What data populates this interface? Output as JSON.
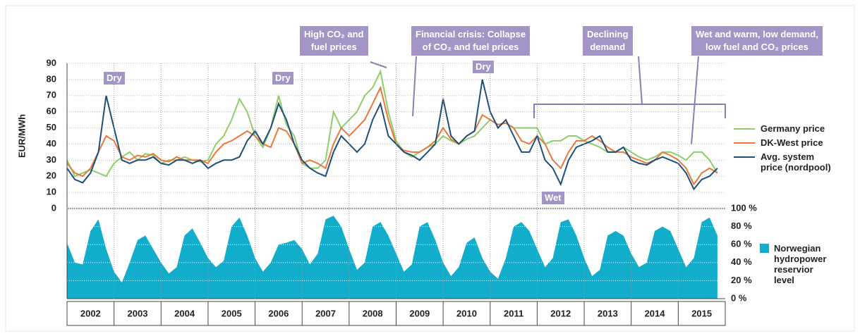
{
  "chart_data": [
    {
      "type": "line",
      "ylabel": "EUR/MWh",
      "x": [
        2002,
        2002.167,
        2002.333,
        2002.5,
        2002.667,
        2002.833,
        2003,
        2003.167,
        2003.333,
        2003.5,
        2003.667,
        2003.833,
        2004,
        2004.167,
        2004.333,
        2004.5,
        2004.667,
        2004.833,
        2005,
        2005.167,
        2005.333,
        2005.5,
        2005.667,
        2005.833,
        2006,
        2006.167,
        2006.333,
        2006.5,
        2006.667,
        2006.833,
        2007,
        2007.167,
        2007.333,
        2007.5,
        2007.667,
        2007.833,
        2008,
        2008.167,
        2008.333,
        2008.5,
        2008.667,
        2008.833,
        2009,
        2009.167,
        2009.333,
        2009.5,
        2009.667,
        2009.833,
        2010,
        2010.167,
        2010.333,
        2010.5,
        2010.667,
        2010.833,
        2011,
        2011.167,
        2011.333,
        2011.5,
        2011.667,
        2011.833,
        2012,
        2012.167,
        2012.333,
        2012.5,
        2012.667,
        2012.833,
        2013,
        2013.167,
        2013.333,
        2013.5,
        2013.667,
        2013.833,
        2014,
        2014.167,
        2014.333,
        2014.5,
        2014.667,
        2014.833,
        2015,
        2015.167,
        2015.333,
        2015.5,
        2015.667,
        2015.833
      ],
      "xlim": [
        2002,
        2016
      ],
      "ylim": [
        0,
        90
      ],
      "yticks": [
        0,
        10,
        20,
        30,
        40,
        50,
        60,
        70,
        80,
        90
      ],
      "grid": true,
      "series": [
        {
          "name": "Germany price",
          "color": "#8ccf6a",
          "values": [
            30,
            20,
            22,
            24,
            22,
            20,
            28,
            32,
            35,
            30,
            34,
            33,
            28,
            30,
            30,
            32,
            30,
            29,
            30,
            40,
            45,
            55,
            68,
            60,
            45,
            38,
            50,
            70,
            52,
            45,
            28,
            25,
            25,
            30,
            60,
            50,
            55,
            60,
            70,
            75,
            85,
            60,
            42,
            35,
            32,
            35,
            38,
            40,
            45,
            42,
            40,
            43,
            45,
            50,
            55,
            52,
            53,
            50,
            50,
            50,
            50,
            40,
            42,
            42,
            45,
            45,
            42,
            40,
            38,
            35,
            35,
            38,
            35,
            32,
            30,
            32,
            35,
            35,
            33,
            30,
            35,
            35,
            30,
            22
          ]
        },
        {
          "name": "DK-West price",
          "color": "#e8793a",
          "values": [
            28,
            22,
            20,
            25,
            35,
            45,
            42,
            32,
            30,
            33,
            32,
            34,
            30,
            29,
            32,
            30,
            30,
            30,
            28,
            35,
            40,
            42,
            45,
            48,
            45,
            40,
            38,
            50,
            48,
            40,
            28,
            30,
            28,
            25,
            40,
            50,
            45,
            50,
            55,
            65,
            75,
            55,
            40,
            36,
            35,
            35,
            38,
            42,
            50,
            43,
            40,
            45,
            48,
            58,
            55,
            52,
            53,
            50,
            42,
            40,
            45,
            40,
            30,
            25,
            35,
            42,
            42,
            45,
            42,
            38,
            35,
            35,
            32,
            30,
            28,
            30,
            35,
            33,
            30,
            25,
            15,
            22,
            25,
            22
          ]
        },
        {
          "name": "Avg. system price (nordpool)",
          "color": "#1f4e79",
          "values": [
            25,
            18,
            16,
            22,
            35,
            70,
            50,
            30,
            28,
            30,
            30,
            32,
            28,
            27,
            30,
            30,
            28,
            30,
            25,
            28,
            30,
            30,
            32,
            42,
            48,
            40,
            50,
            65,
            55,
            40,
            30,
            25,
            22,
            20,
            35,
            45,
            40,
            35,
            40,
            55,
            65,
            45,
            40,
            35,
            33,
            30,
            35,
            40,
            68,
            45,
            40,
            45,
            48,
            80,
            60,
            50,
            55,
            45,
            35,
            35,
            45,
            30,
            25,
            15,
            30,
            38,
            40,
            42,
            45,
            35,
            35,
            38,
            30,
            28,
            27,
            30,
            32,
            30,
            28,
            22,
            12,
            18,
            20,
            25
          ]
        }
      ],
      "annotations": [
        {
          "text": [
            "High CO₂ and",
            "fuel prices"
          ]
        },
        {
          "text": [
            "Financial crisis: Collapse",
            "of CO₂ and fuel prices"
          ]
        },
        {
          "text": [
            "Declining",
            "demand"
          ]
        },
        {
          "text": [
            "Wet and warm, low demand,",
            "low fuel and CO₂ prices"
          ]
        },
        {
          "text": [
            "Dry"
          ]
        },
        {
          "text": [
            "Dry"
          ]
        },
        {
          "text": [
            "Dry"
          ]
        },
        {
          "text": [
            "Wet"
          ]
        }
      ]
    },
    {
      "type": "area",
      "x": [
        2002,
        2002.167,
        2002.333,
        2002.5,
        2002.667,
        2002.833,
        2003,
        2003.167,
        2003.333,
        2003.5,
        2003.667,
        2003.833,
        2004,
        2004.167,
        2004.333,
        2004.5,
        2004.667,
        2004.833,
        2005,
        2005.167,
        2005.333,
        2005.5,
        2005.667,
        2005.833,
        2006,
        2006.167,
        2006.333,
        2006.5,
        2006.667,
        2006.833,
        2007,
        2007.167,
        2007.333,
        2007.5,
        2007.667,
        2007.833,
        2008,
        2008.167,
        2008.333,
        2008.5,
        2008.667,
        2008.833,
        2009,
        2009.167,
        2009.333,
        2009.5,
        2009.667,
        2009.833,
        2010,
        2010.167,
        2010.333,
        2010.5,
        2010.667,
        2010.833,
        2011,
        2011.167,
        2011.333,
        2011.5,
        2011.667,
        2011.833,
        2012,
        2012.167,
        2012.333,
        2012.5,
        2012.667,
        2012.833,
        2013,
        2013.167,
        2013.333,
        2013.5,
        2013.667,
        2013.833,
        2014,
        2014.167,
        2014.333,
        2014.5,
        2014.667,
        2014.833,
        2015,
        2015.167,
        2015.333,
        2015.5,
        2015.667,
        2015.833
      ],
      "xlim": [
        2002,
        2016
      ],
      "categories": [
        "2002",
        "2003",
        "2004",
        "2005",
        "2006",
        "2007",
        "2008",
        "2009",
        "2010",
        "2011",
        "2012",
        "2013",
        "2014",
        "2015"
      ],
      "ylim": [
        0,
        100
      ],
      "yticks": [
        {
          "value": 0,
          "label": "0 %"
        },
        {
          "value": 20,
          "label": "20 %"
        },
        {
          "value": 40,
          "label": "40 %"
        },
        {
          "value": 60,
          "label": "60 %"
        },
        {
          "value": 80,
          "label": "80 %"
        },
        {
          "value": 100,
          "label": "100 %"
        }
      ],
      "grid": true,
      "series": [
        {
          "name": "Norwegian hydropower reservior level",
          "color": "#12adca",
          "values": [
            62,
            40,
            38,
            75,
            88,
            55,
            30,
            18,
            40,
            65,
            70,
            55,
            40,
            28,
            35,
            70,
            78,
            62,
            45,
            35,
            42,
            80,
            90,
            70,
            45,
            30,
            40,
            60,
            62,
            65,
            55,
            38,
            50,
            88,
            92,
            80,
            55,
            32,
            40,
            80,
            85,
            70,
            50,
            30,
            38,
            80,
            85,
            65,
            40,
            25,
            35,
            62,
            68,
            45,
            30,
            22,
            45,
            80,
            85,
            75,
            55,
            35,
            45,
            85,
            88,
            70,
            45,
            25,
            32,
            70,
            75,
            70,
            50,
            35,
            40,
            75,
            80,
            75,
            55,
            35,
            45,
            85,
            90,
            70
          ]
        }
      ]
    }
  ]
}
